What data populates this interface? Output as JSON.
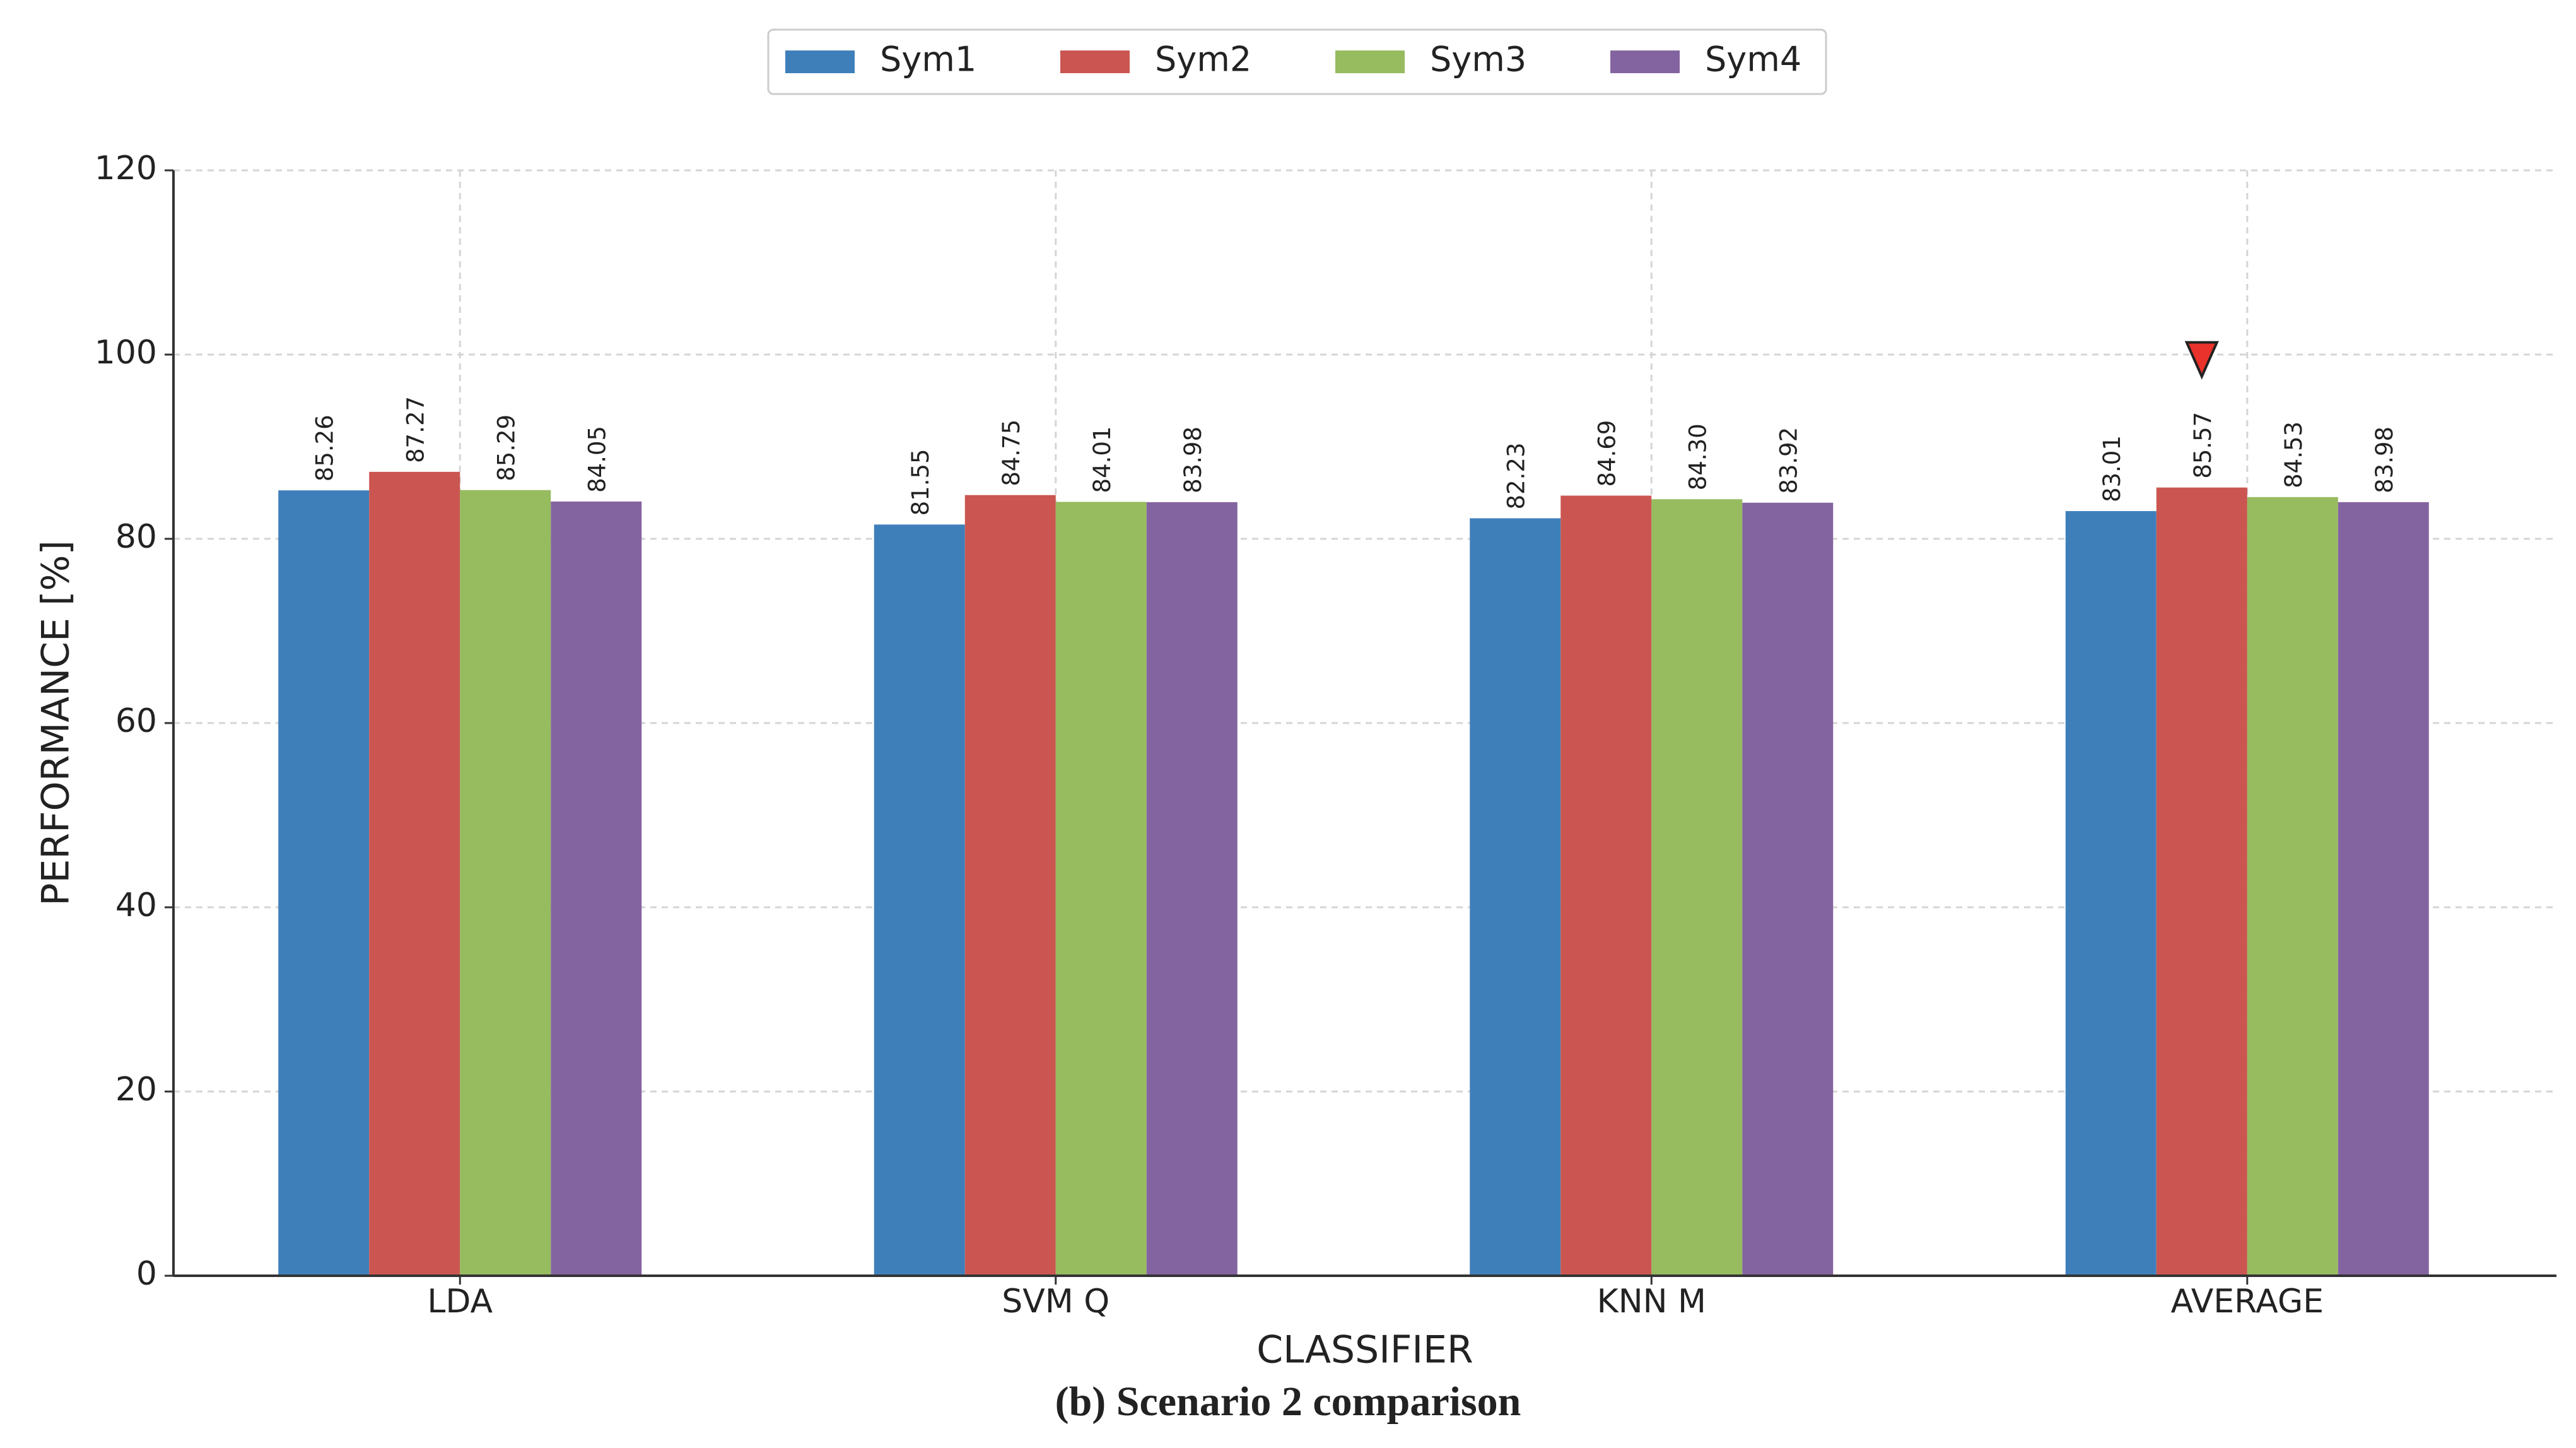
{
  "chart_data": {
    "type": "bar",
    "caption": "(b) Scenario 2 comparison",
    "x_label": "CLASSIFIER",
    "y_label": "PERFORMANCE [%]",
    "categories": [
      "LDA",
      "SVM Q",
      "KNN M",
      "AVERAGE"
    ],
    "series": [
      {
        "name": "Sym1",
        "color": "#3e7fba",
        "values": [
          85.26,
          81.55,
          82.23,
          83.01
        ],
        "value_labels": [
          "85.26",
          "81.55",
          "82.23",
          "83.01"
        ]
      },
      {
        "name": "Sym2",
        "color": "#cb5651",
        "values": [
          87.27,
          84.75,
          84.69,
          85.57
        ],
        "value_labels": [
          "87.27",
          "84.75",
          "84.69",
          "85.57"
        ]
      },
      {
        "name": "Sym3",
        "color": "#97bb5f",
        "values": [
          85.29,
          84.01,
          84.3,
          84.53
        ],
        "value_labels": [
          "85.29",
          "84.01",
          "84.30",
          "84.53"
        ]
      },
      {
        "name": "Sym4",
        "color": "#8464a0",
        "values": [
          84.05,
          83.98,
          83.92,
          83.98
        ],
        "value_labels": [
          "84.05",
          "83.98",
          "83.92",
          "83.98"
        ]
      }
    ],
    "ylim": [
      0,
      120
    ],
    "yticks": [
      0,
      20,
      40,
      60,
      80,
      100,
      120
    ],
    "grid": true,
    "legend": "top"
  }
}
